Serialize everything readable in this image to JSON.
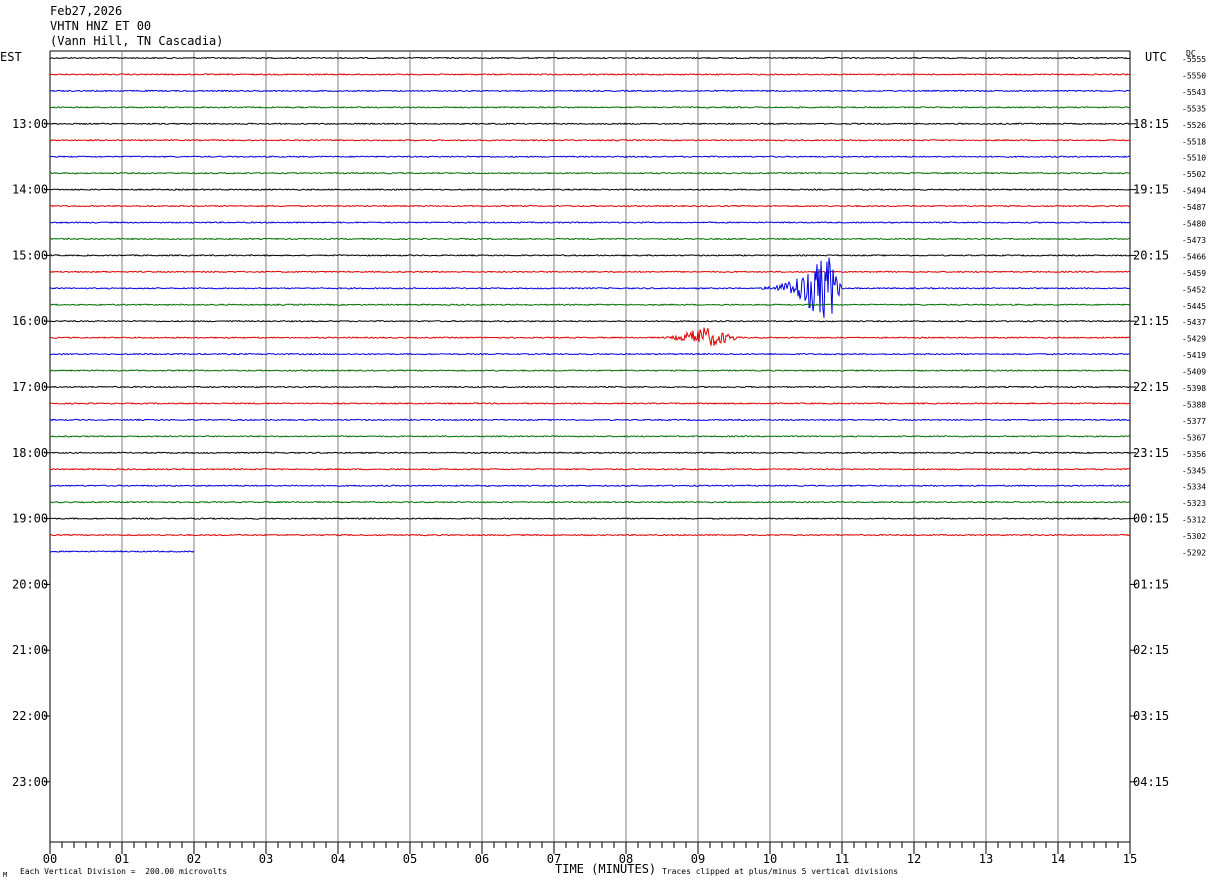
{
  "header": {
    "date": "Feb27,2026",
    "station": "VHTN HNZ ET 00",
    "location": "(Vann Hill, TN Cascadia)"
  },
  "left_axis_label": "EST",
  "right_axis_label": "UTC",
  "dc_label": "DC",
  "footer": {
    "scale": "Each Vertical Division =  200.00 microvolts",
    "xlabel": "TIME (MINUTES)",
    "clip_note": "Traces clipped at plus/minus 5 vertical divisions",
    "corner_mark": "M"
  },
  "chart_data": {
    "type": "line",
    "title": "VHTN HNZ ET 00",
    "xlabel": "TIME (MINUTES)",
    "xlim": [
      0,
      15
    ],
    "x_ticks": [
      "00",
      "01",
      "02",
      "03",
      "04",
      "05",
      "06",
      "07",
      "08",
      "09",
      "10",
      "11",
      "12",
      "13",
      "14",
      "15"
    ],
    "left_hour_labels": [
      "13:00",
      "14:00",
      "15:00",
      "16:00",
      "17:00",
      "18:00",
      "19:00",
      "20:00",
      "21:00",
      "22:00",
      "23:00"
    ],
    "right_hour_labels": [
      "18:15",
      "19:15",
      "20:15",
      "21:15",
      "22:15",
      "23:15",
      "00:15",
      "01:15",
      "02:15",
      "03:15",
      "04:15"
    ],
    "trace_colors": [
      "#000000",
      "#e00000",
      "#0000e0",
      "#007000"
    ],
    "dc_offsets": [
      -5555,
      -5550,
      -5543,
      -5535,
      -5526,
      -5518,
      -5510,
      -5502,
      -5494,
      -5487,
      -5480,
      -5473,
      -5466,
      -5459,
      -5452,
      -5445,
      -5437,
      -5429,
      -5419,
      -5409,
      -5398,
      -5388,
      -5377,
      -5367,
      -5356,
      -5345,
      -5334,
      -5323,
      -5312,
      -5302,
      -5292
    ],
    "last_trace_end_minute": 2,
    "events": [
      {
        "trace_index": 14,
        "start_minute": 9.7,
        "peak_minute": 10.8,
        "end_minute": 11.0,
        "peak_divisions": 5
      },
      {
        "trace_index": 17,
        "start_minute": 8.4,
        "peak_minute": 9.05,
        "end_minute": 9.6,
        "peak_divisions": 1.5
      }
    ]
  }
}
